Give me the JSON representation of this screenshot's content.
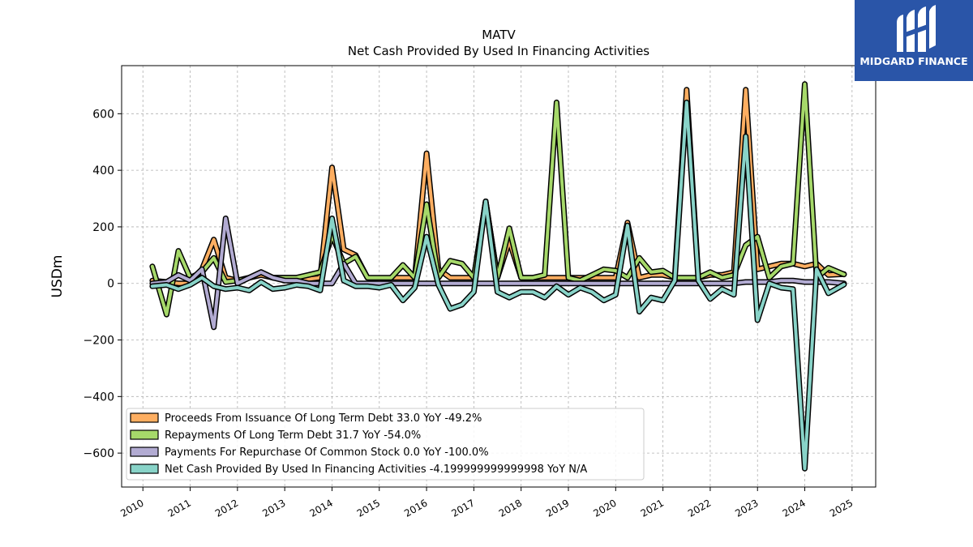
{
  "brand": {
    "name": "MIDGARD FINANCE",
    "icon": "midgard-logo-icon",
    "color": "#2a55a8"
  },
  "chart_data": {
    "type": "line",
    "title": "MATV",
    "subtitle": "Net Cash Provided By Used In Financing Activities",
    "ylabel": "USDm",
    "xlabel": "",
    "xlim": [
      2009.55,
      2025.5
    ],
    "ylim": [
      -720,
      770
    ],
    "yticks": [
      -600,
      -400,
      -200,
      0,
      200,
      400,
      600
    ],
    "ytick_labels": [
      "−600",
      "−400",
      "−200",
      "0",
      "200",
      "400",
      "600"
    ],
    "xticks": [
      2010,
      2011,
      2012,
      2013,
      2014,
      2015,
      2016,
      2017,
      2018,
      2019,
      2020,
      2021,
      2022,
      2023,
      2024,
      2025
    ],
    "xtick_labels": [
      "2010",
      "2011",
      "2012",
      "2013",
      "2014",
      "2015",
      "2016",
      "2017",
      "2018",
      "2019",
      "2020",
      "2021",
      "2022",
      "2023",
      "2024",
      "2025"
    ],
    "grid": true,
    "legend_position": "lower-left",
    "series": [
      {
        "name": "Proceeds From Issuance Of Long Term Debt  33.0 YoY -49.2%",
        "color": "#fdae61",
        "points": [
          [
            2010.2,
            10
          ],
          [
            2010.5,
            5
          ],
          [
            2010.75,
            0
          ],
          [
            2011.0,
            0
          ],
          [
            2011.25,
            50
          ],
          [
            2011.5,
            155
          ],
          [
            2011.75,
            20
          ],
          [
            2012.0,
            10
          ],
          [
            2012.25,
            20
          ],
          [
            2012.5,
            30
          ],
          [
            2012.75,
            20
          ],
          [
            2013.0,
            20
          ],
          [
            2013.25,
            20
          ],
          [
            2013.5,
            15
          ],
          [
            2013.75,
            20
          ],
          [
            2014.0,
            410
          ],
          [
            2014.25,
            120
          ],
          [
            2014.5,
            100
          ],
          [
            2014.75,
            20
          ],
          [
            2015.0,
            15
          ],
          [
            2015.25,
            20
          ],
          [
            2015.5,
            20
          ],
          [
            2015.75,
            20
          ],
          [
            2016.0,
            460
          ],
          [
            2016.25,
            50
          ],
          [
            2016.5,
            20
          ],
          [
            2016.75,
            20
          ],
          [
            2017.0,
            20
          ],
          [
            2017.25,
            290
          ],
          [
            2017.5,
            20
          ],
          [
            2017.75,
            150
          ],
          [
            2018.0,
            20
          ],
          [
            2018.25,
            20
          ],
          [
            2018.5,
            20
          ],
          [
            2018.75,
            20
          ],
          [
            2019.0,
            20
          ],
          [
            2019.25,
            20
          ],
          [
            2019.5,
            20
          ],
          [
            2019.75,
            20
          ],
          [
            2020.0,
            20
          ],
          [
            2020.25,
            215
          ],
          [
            2020.5,
            20
          ],
          [
            2020.75,
            30
          ],
          [
            2021.0,
            30
          ],
          [
            2021.25,
            20
          ],
          [
            2021.5,
            685
          ],
          [
            2021.75,
            20
          ],
          [
            2022.0,
            30
          ],
          [
            2022.25,
            30
          ],
          [
            2022.5,
            40
          ],
          [
            2022.75,
            685
          ],
          [
            2023.0,
            50
          ],
          [
            2023.25,
            60
          ],
          [
            2023.5,
            70
          ],
          [
            2023.75,
            70
          ],
          [
            2024.0,
            60
          ],
          [
            2024.25,
            70
          ],
          [
            2024.5,
            30
          ],
          [
            2024.83,
            33
          ]
        ]
      },
      {
        "name": "Repayments Of Long Term Debt  31.7 YoY -54.0%",
        "color": "#a6d96a",
        "points": [
          [
            2010.2,
            60
          ],
          [
            2010.5,
            -110
          ],
          [
            2010.75,
            115
          ],
          [
            2011.0,
            20
          ],
          [
            2011.25,
            40
          ],
          [
            2011.5,
            90
          ],
          [
            2011.75,
            5
          ],
          [
            2012.0,
            10
          ],
          [
            2012.25,
            20
          ],
          [
            2012.5,
            40
          ],
          [
            2012.75,
            20
          ],
          [
            2013.0,
            20
          ],
          [
            2013.25,
            20
          ],
          [
            2013.5,
            30
          ],
          [
            2013.75,
            40
          ],
          [
            2014.0,
            170
          ],
          [
            2014.25,
            70
          ],
          [
            2014.5,
            95
          ],
          [
            2014.75,
            20
          ],
          [
            2015.0,
            20
          ],
          [
            2015.25,
            20
          ],
          [
            2015.5,
            65
          ],
          [
            2015.75,
            20
          ],
          [
            2016.0,
            280
          ],
          [
            2016.25,
            20
          ],
          [
            2016.5,
            80
          ],
          [
            2016.75,
            70
          ],
          [
            2017.0,
            20
          ],
          [
            2017.25,
            290
          ],
          [
            2017.5,
            20
          ],
          [
            2017.75,
            195
          ],
          [
            2018.0,
            20
          ],
          [
            2018.25,
            20
          ],
          [
            2018.5,
            30
          ],
          [
            2018.75,
            640
          ],
          [
            2019.0,
            20
          ],
          [
            2019.25,
            10
          ],
          [
            2019.5,
            30
          ],
          [
            2019.75,
            50
          ],
          [
            2020.0,
            45
          ],
          [
            2020.25,
            20
          ],
          [
            2020.5,
            90
          ],
          [
            2020.75,
            40
          ],
          [
            2021.0,
            45
          ],
          [
            2021.25,
            20
          ],
          [
            2021.5,
            20
          ],
          [
            2021.75,
            20
          ],
          [
            2022.0,
            40
          ],
          [
            2022.25,
            20
          ],
          [
            2022.5,
            30
          ],
          [
            2022.75,
            135
          ],
          [
            2023.0,
            165
          ],
          [
            2023.25,
            20
          ],
          [
            2023.5,
            60
          ],
          [
            2023.75,
            70
          ],
          [
            2024.0,
            705
          ],
          [
            2024.25,
            20
          ],
          [
            2024.5,
            55
          ],
          [
            2024.83,
            32
          ]
        ]
      },
      {
        "name": "Payments For Repurchase Of Common Stock  0.0 YoY -100.0%",
        "color": "#b2abd2",
        "points": [
          [
            2010.2,
            0
          ],
          [
            2010.5,
            5
          ],
          [
            2010.75,
            30
          ],
          [
            2011.0,
            10
          ],
          [
            2011.25,
            50
          ],
          [
            2011.5,
            -155
          ],
          [
            2011.75,
            230
          ],
          [
            2012.0,
            0
          ],
          [
            2012.25,
            20
          ],
          [
            2012.5,
            40
          ],
          [
            2012.75,
            20
          ],
          [
            2013.0,
            10
          ],
          [
            2013.25,
            10
          ],
          [
            2013.5,
            0
          ],
          [
            2013.75,
            0
          ],
          [
            2014.0,
            0
          ],
          [
            2014.25,
            70
          ],
          [
            2014.5,
            0
          ],
          [
            2014.75,
            0
          ],
          [
            2015.0,
            0
          ],
          [
            2015.25,
            0
          ],
          [
            2015.5,
            0
          ],
          [
            2015.75,
            0
          ],
          [
            2016.0,
            0
          ],
          [
            2016.25,
            0
          ],
          [
            2016.5,
            0
          ],
          [
            2016.75,
            0
          ],
          [
            2017.0,
            0
          ],
          [
            2017.25,
            0
          ],
          [
            2017.5,
            0
          ],
          [
            2017.75,
            0
          ],
          [
            2018.0,
            0
          ],
          [
            2018.25,
            0
          ],
          [
            2018.5,
            0
          ],
          [
            2018.75,
            0
          ],
          [
            2019.0,
            0
          ],
          [
            2019.25,
            0
          ],
          [
            2019.5,
            0
          ],
          [
            2019.75,
            0
          ],
          [
            2020.0,
            0
          ],
          [
            2020.25,
            0
          ],
          [
            2020.5,
            0
          ],
          [
            2020.75,
            0
          ],
          [
            2021.0,
            0
          ],
          [
            2021.25,
            0
          ],
          [
            2021.5,
            0
          ],
          [
            2021.75,
            0
          ],
          [
            2022.0,
            0
          ],
          [
            2022.25,
            0
          ],
          [
            2022.5,
            0
          ],
          [
            2022.75,
            5
          ],
          [
            2023.0,
            5
          ],
          [
            2023.25,
            5
          ],
          [
            2023.5,
            10
          ],
          [
            2023.75,
            10
          ],
          [
            2024.0,
            5
          ],
          [
            2024.25,
            5
          ],
          [
            2024.5,
            5
          ],
          [
            2024.83,
            0
          ]
        ]
      },
      {
        "name": "Net Cash Provided By Used In Financing Activities  -4.199999999999998 YoY N/A",
        "color": "#88d3c8",
        "points": [
          [
            2010.2,
            -10
          ],
          [
            2010.5,
            -5
          ],
          [
            2010.75,
            -20
          ],
          [
            2011.0,
            -5
          ],
          [
            2011.25,
            20
          ],
          [
            2011.5,
            -10
          ],
          [
            2011.75,
            -20
          ],
          [
            2012.0,
            -15
          ],
          [
            2012.25,
            -25
          ],
          [
            2012.5,
            5
          ],
          [
            2012.75,
            -20
          ],
          [
            2013.0,
            -15
          ],
          [
            2013.25,
            -5
          ],
          [
            2013.5,
            -10
          ],
          [
            2013.75,
            -25
          ],
          [
            2014.0,
            230
          ],
          [
            2014.25,
            10
          ],
          [
            2014.5,
            -10
          ],
          [
            2014.75,
            -10
          ],
          [
            2015.0,
            -15
          ],
          [
            2015.25,
            -5
          ],
          [
            2015.5,
            -60
          ],
          [
            2015.75,
            -15
          ],
          [
            2016.0,
            165
          ],
          [
            2016.25,
            -5
          ],
          [
            2016.5,
            -90
          ],
          [
            2016.75,
            -75
          ],
          [
            2017.0,
            -30
          ],
          [
            2017.25,
            290
          ],
          [
            2017.5,
            -30
          ],
          [
            2017.75,
            -50
          ],
          [
            2018.0,
            -30
          ],
          [
            2018.25,
            -30
          ],
          [
            2018.5,
            -50
          ],
          [
            2018.75,
            -10
          ],
          [
            2019.0,
            -40
          ],
          [
            2019.25,
            -15
          ],
          [
            2019.5,
            -30
          ],
          [
            2019.75,
            -60
          ],
          [
            2020.0,
            -40
          ],
          [
            2020.25,
            205
          ],
          [
            2020.5,
            -100
          ],
          [
            2020.75,
            -50
          ],
          [
            2021.0,
            -60
          ],
          [
            2021.25,
            10
          ],
          [
            2021.5,
            640
          ],
          [
            2021.75,
            10
          ],
          [
            2022.0,
            -55
          ],
          [
            2022.25,
            -20
          ],
          [
            2022.5,
            -40
          ],
          [
            2022.75,
            520
          ],
          [
            2023.0,
            -130
          ],
          [
            2023.25,
            0
          ],
          [
            2023.5,
            -15
          ],
          [
            2023.75,
            -20
          ],
          [
            2024.0,
            -655
          ],
          [
            2024.25,
            50
          ],
          [
            2024.5,
            -35
          ],
          [
            2024.83,
            -4
          ]
        ]
      }
    ]
  }
}
